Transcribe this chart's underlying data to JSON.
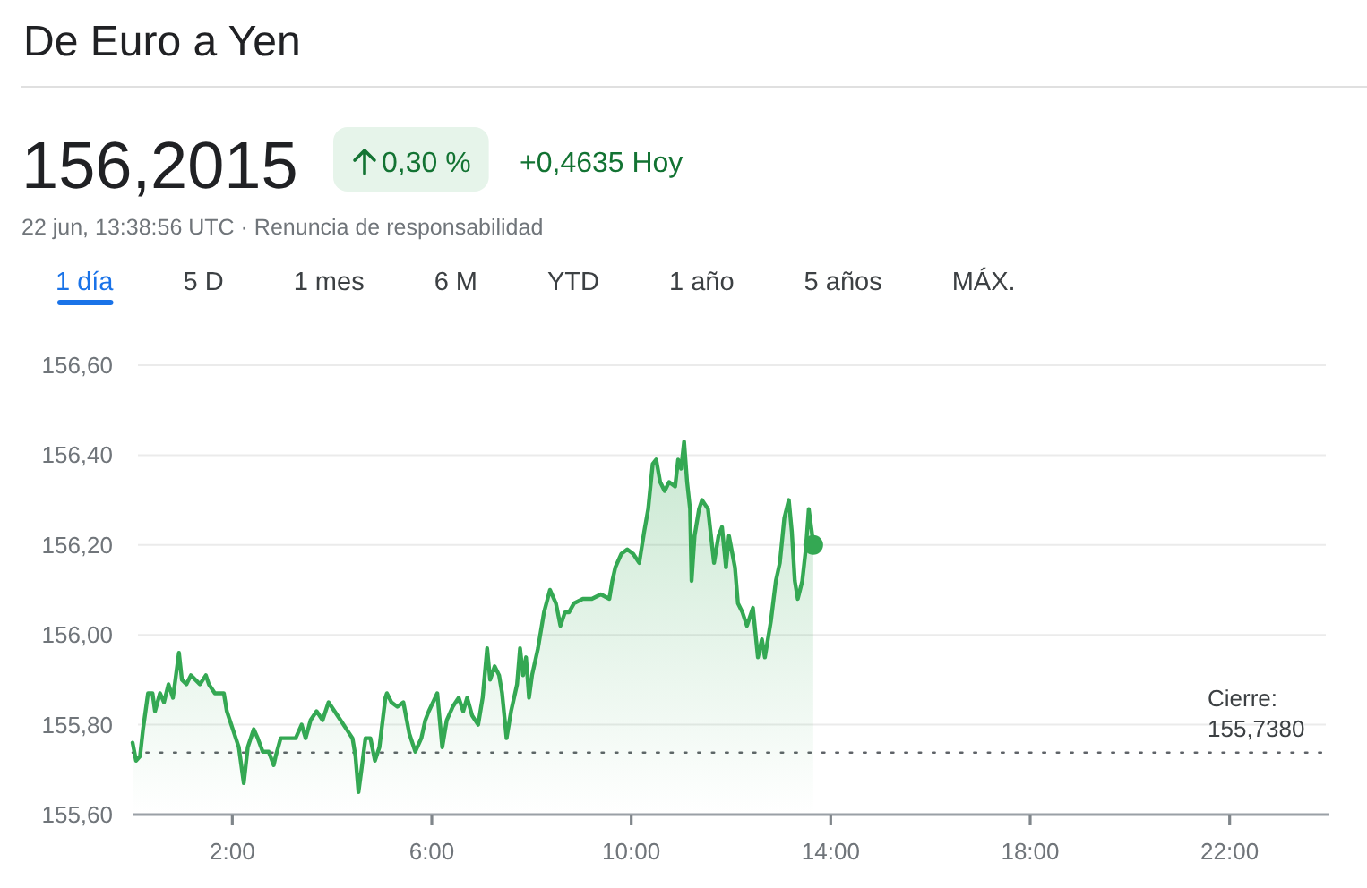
{
  "chart_data": {
    "type": "area",
    "title": "De Euro a Yen",
    "annotations": [
      "156,2015",
      "0,30 %",
      "+0,4635 Hoy",
      "22 jun, 13:38:56 UTC · Renuncia de responsabilidad",
      "1 día",
      "5 D",
      "1 mes",
      "6 M",
      "YTD",
      "1 año",
      "5 años",
      "MÁX."
    ],
    "series": [
      {
        "color": "#34a853",
        "x": [
          0,
          0.07,
          0.15,
          0.21,
          0.31,
          0.4,
          0.45,
          0.55,
          0.63,
          0.72,
          0.81,
          0.93,
          0.99,
          1.08,
          1.17,
          1.35,
          1.47,
          1.53,
          1.65,
          1.83,
          1.89,
          2.01,
          2.13,
          2.23,
          2.31,
          2.43,
          2.51,
          2.61,
          2.73,
          2.83,
          2.87,
          2.97,
          3.09,
          3.27,
          3.39,
          3.47,
          3.57,
          3.69,
          3.81,
          3.93,
          4.05,
          4.17,
          4.29,
          4.41,
          4.47,
          4.53,
          4.59,
          4.67,
          4.77,
          4.86,
          4.95,
          5.07,
          5.1,
          5.19,
          5.31,
          5.43,
          5.55,
          5.67,
          5.79,
          5.87,
          5.94,
          6.11,
          6.21,
          6.3,
          6.42,
          6.54,
          6.63,
          6.71,
          6.81,
          6.93,
          7.02,
          7.11,
          7.17,
          7.26,
          7.35,
          7.41,
          7.5,
          7.59,
          7.71,
          7.77,
          7.83,
          7.89,
          7.95,
          8.01,
          8.13,
          8.25,
          8.37,
          8.49,
          8.58,
          8.67,
          8.75,
          8.85,
          9.03,
          9.21,
          9.39,
          9.56,
          9.62,
          9.68,
          9.8,
          9.92,
          10.04,
          10.16,
          10.26,
          10.34,
          10.43,
          10.5,
          10.58,
          10.67,
          10.76,
          10.88,
          10.94,
          11.0,
          11.06,
          11.12,
          11.18,
          11.21,
          11.27,
          11.36,
          11.42,
          11.54,
          11.6,
          11.66,
          11.75,
          11.82,
          11.9,
          11.96,
          12.08,
          12.14,
          12.23,
          12.32,
          12.44,
          12.54,
          12.62,
          12.68,
          12.8,
          12.9,
          12.98,
          13.07,
          13.16,
          13.22,
          13.28,
          13.34,
          13.43,
          13.5,
          13.56,
          13.62,
          13.65
        ],
        "values": [
          155.76,
          155.72,
          155.73,
          155.79,
          155.87,
          155.87,
          155.83,
          155.87,
          155.85,
          155.89,
          155.86,
          155.96,
          155.9,
          155.89,
          155.91,
          155.89,
          155.91,
          155.89,
          155.87,
          155.87,
          155.83,
          155.79,
          155.75,
          155.67,
          155.75,
          155.79,
          155.77,
          155.74,
          155.74,
          155.71,
          155.73,
          155.77,
          155.77,
          155.77,
          155.8,
          155.77,
          155.81,
          155.83,
          155.81,
          155.85,
          155.83,
          155.81,
          155.79,
          155.77,
          155.73,
          155.65,
          155.7,
          155.77,
          155.77,
          155.72,
          155.75,
          155.86,
          155.87,
          155.85,
          155.84,
          155.85,
          155.78,
          155.74,
          155.77,
          155.81,
          155.83,
          155.87,
          155.75,
          155.81,
          155.84,
          155.86,
          155.83,
          155.86,
          155.82,
          155.8,
          155.86,
          155.97,
          155.9,
          155.93,
          155.91,
          155.87,
          155.77,
          155.83,
          155.89,
          155.97,
          155.91,
          155.95,
          155.86,
          155.91,
          155.97,
          156.05,
          156.1,
          156.07,
          156.02,
          156.05,
          156.05,
          156.07,
          156.08,
          156.08,
          156.09,
          156.08,
          156.12,
          156.15,
          156.18,
          156.19,
          156.18,
          156.16,
          156.23,
          156.28,
          156.38,
          156.39,
          156.34,
          156.32,
          156.34,
          156.33,
          156.39,
          156.37,
          156.43,
          156.34,
          156.28,
          156.12,
          156.22,
          156.28,
          156.3,
          156.28,
          156.22,
          156.16,
          156.22,
          156.24,
          156.15,
          156.22,
          156.15,
          156.07,
          156.05,
          156.02,
          156.06,
          155.95,
          155.99,
          155.95,
          156.03,
          156.12,
          156.16,
          156.26,
          156.3,
          156.23,
          156.12,
          156.08,
          156.12,
          156.19,
          156.28,
          156.23,
          156.2
        ]
      },
      {
        "type": "scatter",
        "color": "#34a853",
        "marker": "circle",
        "x": [
          13.65
        ],
        "values": [
          156.2
        ]
      }
    ],
    "xlim": [
      0,
      24
    ],
    "xticks": [
      {
        "value": 2,
        "label": "2:00"
      },
      {
        "value": 6,
        "label": "6:00"
      },
      {
        "value": 10,
        "label": "10:00"
      },
      {
        "value": 14,
        "label": "14:00"
      },
      {
        "value": 18,
        "label": "18:00"
      },
      {
        "value": 22,
        "label": "22:00"
      }
    ],
    "ylim": [
      155.6,
      156.6
    ],
    "yticks": [
      {
        "value": 155.6,
        "label": "155,60"
      },
      {
        "value": 155.8,
        "label": "155,80"
      },
      {
        "value": 156.0,
        "label": "156,00"
      },
      {
        "value": 156.2,
        "label": "156,20"
      },
      {
        "value": 156.4,
        "label": "156,40"
      },
      {
        "value": 156.6,
        "label": "156,60"
      }
    ],
    "grid": "y",
    "ref_lines": [
      {
        "axis": "y",
        "value": 155.738,
        "label": "Cierre: 155,7380",
        "line_style": "dotted",
        "color": "#5f6368"
      }
    ]
  }
}
